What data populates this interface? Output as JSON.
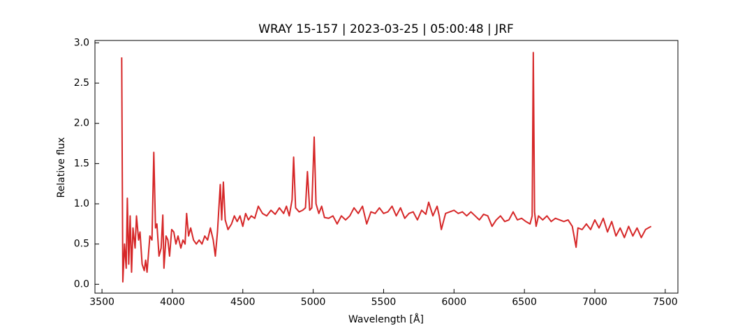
{
  "chart_data": {
    "type": "line",
    "title": "WRAY 15-157 | 2023-03-25 | 05:00:48 | JRF",
    "x_label": "Wavelength [Å]",
    "y_label": "Relative flux",
    "color": "#d62728",
    "x": [
      3640,
      3648,
      3660,
      3672,
      3680,
      3690,
      3700,
      3710,
      3720,
      3735,
      3745,
      3760,
      3770,
      3785,
      3800,
      3810,
      3820,
      3840,
      3855,
      3868,
      3880,
      3890,
      3905,
      3920,
      3932,
      3940,
      3955,
      3968,
      3980,
      3995,
      4010,
      4025,
      4040,
      4060,
      4075,
      4090,
      4101,
      4115,
      4130,
      4150,
      4170,
      4190,
      4210,
      4230,
      4250,
      4270,
      4290,
      4305,
      4320,
      4340,
      4350,
      4362,
      4375,
      4395,
      4420,
      4440,
      4460,
      4480,
      4500,
      4520,
      4540,
      4560,
      4585,
      4610,
      4640,
      4670,
      4700,
      4730,
      4760,
      4790,
      4810,
      4830,
      4850,
      4861,
      4875,
      4900,
      4925,
      4945,
      4959,
      4975,
      4990,
      5007,
      5020,
      5040,
      5060,
      5080,
      5110,
      5140,
      5170,
      5200,
      5230,
      5260,
      5290,
      5320,
      5350,
      5380,
      5410,
      5440,
      5470,
      5500,
      5530,
      5560,
      5590,
      5620,
      5650,
      5680,
      5710,
      5740,
      5770,
      5800,
      5820,
      5850,
      5880,
      5895,
      5910,
      5940,
      5970,
      6000,
      6030,
      6060,
      6090,
      6120,
      6150,
      6180,
      6210,
      6240,
      6270,
      6300,
      6330,
      6360,
      6390,
      6420,
      6450,
      6480,
      6510,
      6540,
      6555,
      6563,
      6572,
      6583,
      6600,
      6630,
      6660,
      6690,
      6720,
      6750,
      6780,
      6810,
      6840,
      6867,
      6880,
      6910,
      6940,
      6970,
      7000,
      7030,
      7060,
      7090,
      7120,
      7150,
      7180,
      7210,
      7240,
      7270,
      7300,
      7330,
      7360,
      7400
    ],
    "values": [
      2.82,
      0.03,
      0.5,
      0.2,
      1.07,
      0.25,
      0.85,
      0.15,
      0.7,
      0.45,
      0.85,
      0.55,
      0.65,
      0.25,
      0.17,
      0.3,
      0.15,
      0.6,
      0.55,
      1.64,
      0.7,
      0.75,
      0.35,
      0.45,
      0.86,
      0.2,
      0.6,
      0.55,
      0.35,
      0.68,
      0.65,
      0.5,
      0.6,
      0.45,
      0.55,
      0.5,
      0.88,
      0.6,
      0.7,
      0.55,
      0.5,
      0.55,
      0.5,
      0.6,
      0.55,
      0.7,
      0.55,
      0.35,
      0.65,
      1.24,
      0.8,
      1.27,
      0.8,
      0.68,
      0.75,
      0.85,
      0.78,
      0.85,
      0.72,
      0.88,
      0.8,
      0.85,
      0.82,
      0.97,
      0.88,
      0.85,
      0.92,
      0.87,
      0.95,
      0.88,
      0.97,
      0.85,
      1.05,
      1.58,
      0.95,
      0.9,
      0.92,
      0.95,
      1.4,
      0.92,
      0.95,
      1.83,
      1.0,
      0.88,
      0.97,
      0.83,
      0.82,
      0.85,
      0.75,
      0.85,
      0.8,
      0.85,
      0.95,
      0.88,
      0.97,
      0.75,
      0.9,
      0.88,
      0.95,
      0.88,
      0.9,
      0.97,
      0.85,
      0.95,
      0.82,
      0.88,
      0.9,
      0.8,
      0.92,
      0.87,
      1.02,
      0.85,
      0.97,
      0.85,
      0.68,
      0.88,
      0.9,
      0.92,
      0.88,
      0.9,
      0.85,
      0.9,
      0.85,
      0.8,
      0.87,
      0.85,
      0.72,
      0.8,
      0.85,
      0.78,
      0.8,
      0.9,
      0.8,
      0.82,
      0.78,
      0.75,
      0.85,
      2.88,
      0.9,
      0.72,
      0.85,
      0.8,
      0.85,
      0.78,
      0.82,
      0.8,
      0.78,
      0.8,
      0.72,
      0.46,
      0.7,
      0.68,
      0.75,
      0.68,
      0.8,
      0.7,
      0.82,
      0.65,
      0.78,
      0.6,
      0.7,
      0.58,
      0.72,
      0.6,
      0.7,
      0.58,
      0.68,
      0.72
    ],
    "xlim": [
      3450,
      7590
    ],
    "ylim": [
      -0.11,
      3.03
    ],
    "xticks": [
      3500,
      4000,
      4500,
      5000,
      5500,
      6000,
      6500,
      7000,
      7500
    ],
    "yticks": [
      {
        "value": 0,
        "label": "0.0"
      },
      0.5,
      {
        "value": 1,
        "label": "1.0"
      },
      1.5,
      {
        "value": 2,
        "label": "2.0"
      },
      2.5,
      {
        "value": 3,
        "label": "3.0"
      }
    ]
  }
}
